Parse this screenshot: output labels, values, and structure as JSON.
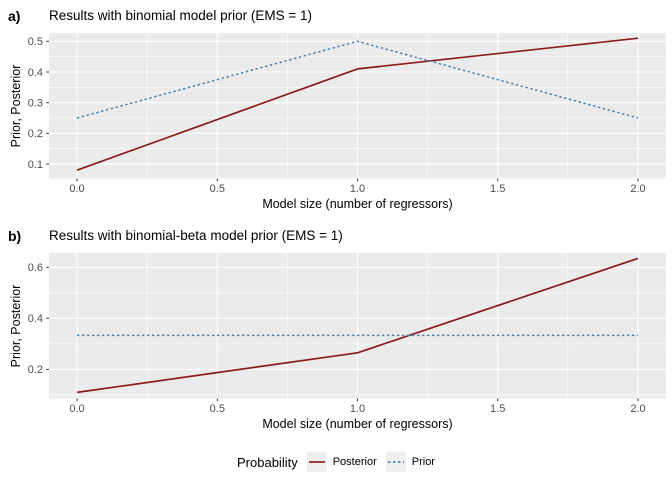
{
  "legend": {
    "title": "Probability",
    "entries": [
      {
        "label": "Posterior",
        "color": "#8B1C1C",
        "style": "solid"
      },
      {
        "label": "Prior",
        "color": "#4682B4",
        "style": "dotted"
      }
    ],
    "key_fill": "#EFEFEF",
    "position": "bottom"
  },
  "chart_data": [
    {
      "type": "line",
      "panel_tag": "a)",
      "title": "Results with binomial model prior (EMS = 1)",
      "xlabel": "Model size (number of regressors)",
      "ylabel": "Prior, Posterior",
      "x": [
        0,
        1,
        2
      ],
      "series": [
        {
          "name": "Posterior",
          "values": [
            0.08,
            0.41,
            0.51
          ],
          "color": "#8B1C1C",
          "style": "solid"
        },
        {
          "name": "Prior",
          "values": [
            0.25,
            0.5,
            0.25
          ],
          "color": "#4682B4",
          "style": "dotted"
        }
      ],
      "xticks": {
        "values": [
          0,
          0.5,
          1,
          1.5,
          2
        ],
        "labels": [
          "0.0",
          "0.5",
          "1.0",
          "1.5",
          "2.0"
        ]
      },
      "yticks": {
        "values": [
          0.1,
          0.2,
          0.3,
          0.4,
          0.5
        ],
        "labels": [
          "0.1",
          "0.2",
          "0.3",
          "0.4",
          "0.5"
        ]
      },
      "xlim": [
        -0.1,
        2.1
      ],
      "ylim": [
        0.053,
        0.527
      ],
      "grid": true,
      "panel_bg": "#EBEBEB",
      "legend_position": "bottom"
    },
    {
      "type": "line",
      "panel_tag": "b)",
      "title": "Results with binomial-beta model prior (EMS = 1)",
      "xlabel": "Model size (number of regressors)",
      "ylabel": "Prior, Posterior",
      "x": [
        0,
        1,
        2
      ],
      "series": [
        {
          "name": "Posterior",
          "values": [
            0.11,
            0.265,
            0.635
          ],
          "color": "#8B1C1C",
          "style": "solid"
        },
        {
          "name": "Prior",
          "values": [
            0.3333,
            0.3333,
            0.3333
          ],
          "color": "#4682B4",
          "style": "dotted"
        }
      ],
      "xticks": {
        "values": [
          0,
          0.5,
          1,
          1.5,
          2
        ],
        "labels": [
          "0.0",
          "0.5",
          "1.0",
          "1.5",
          "2.0"
        ]
      },
      "yticks": {
        "values": [
          0.2,
          0.4,
          0.6
        ],
        "labels": [
          "0.2",
          "0.4",
          "0.6"
        ]
      },
      "xlim": [
        -0.1,
        2.1
      ],
      "ylim": [
        0.086,
        0.656
      ],
      "grid": true,
      "panel_bg": "#EBEBEB",
      "legend_position": "bottom"
    }
  ]
}
